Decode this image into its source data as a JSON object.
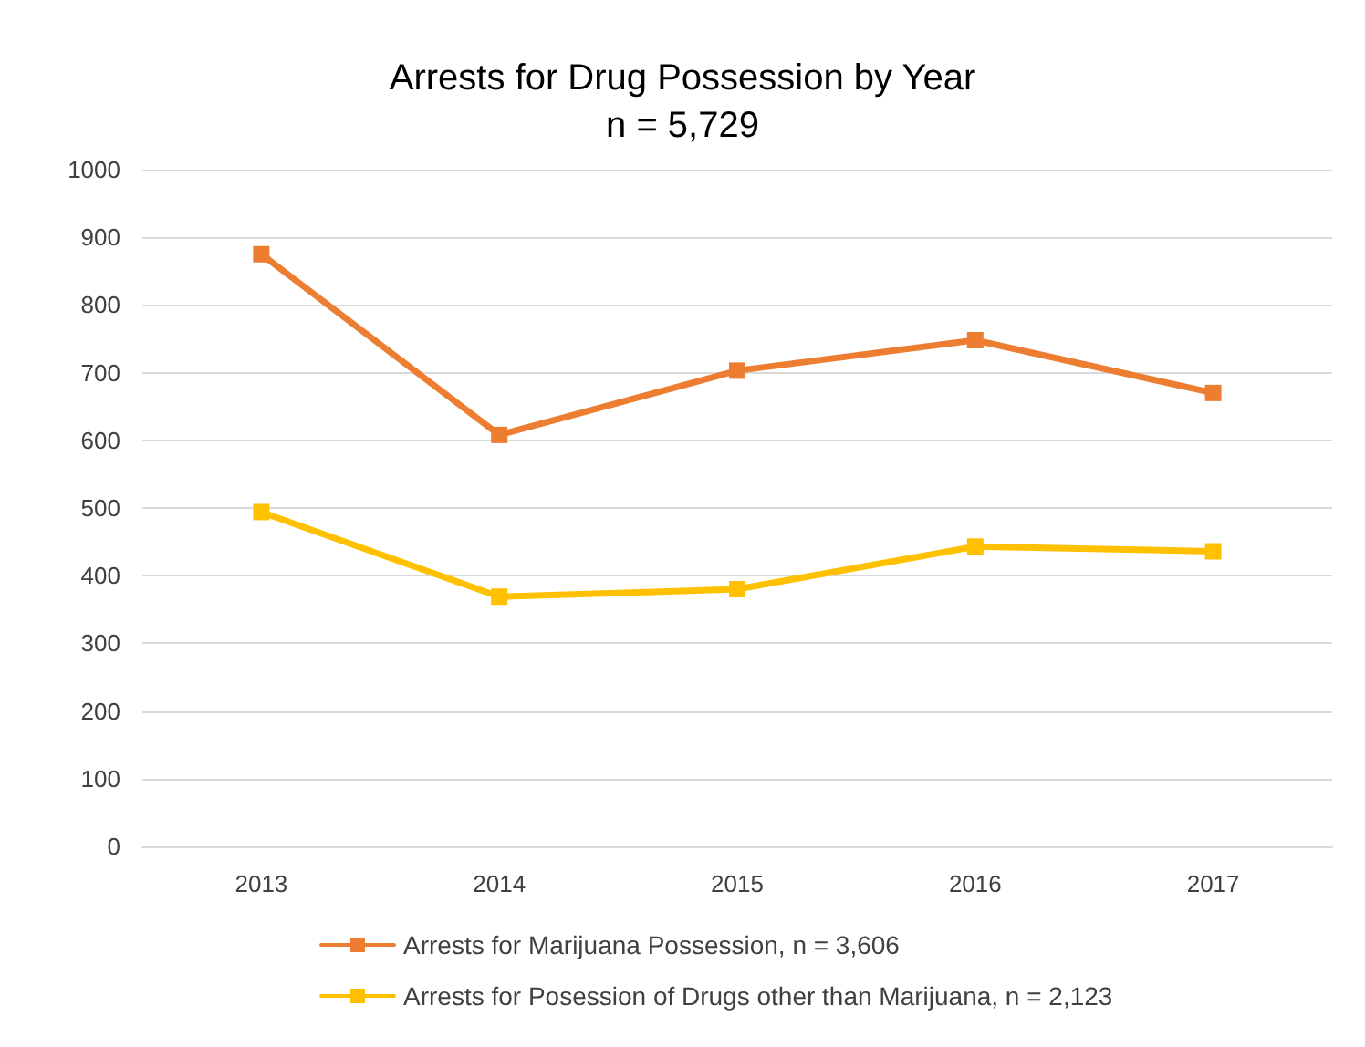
{
  "chart_data": {
    "type": "line",
    "title": "Arrests for Drug Possession by Year",
    "subtitle": "n = 5,729",
    "categories": [
      "2013",
      "2014",
      "2015",
      "2016",
      "2017"
    ],
    "series": [
      {
        "name": "Arrests for Marijuana Possession, n = 3,606",
        "color": "#ed7d31",
        "values": [
          875,
          608,
          703,
          748,
          670
        ]
      },
      {
        "name": "Arrests for Posession of Drugs other than Marijuana, n = 2,123",
        "color": "#ffc000",
        "values": [
          494,
          369,
          380,
          443,
          436
        ]
      }
    ],
    "ylim": [
      0,
      1000
    ],
    "yticks": [
      0,
      100,
      200,
      300,
      400,
      500,
      600,
      700,
      800,
      900,
      1000
    ],
    "grid": "y",
    "legend": "bottom",
    "marker": "square",
    "line_style": "solid"
  }
}
